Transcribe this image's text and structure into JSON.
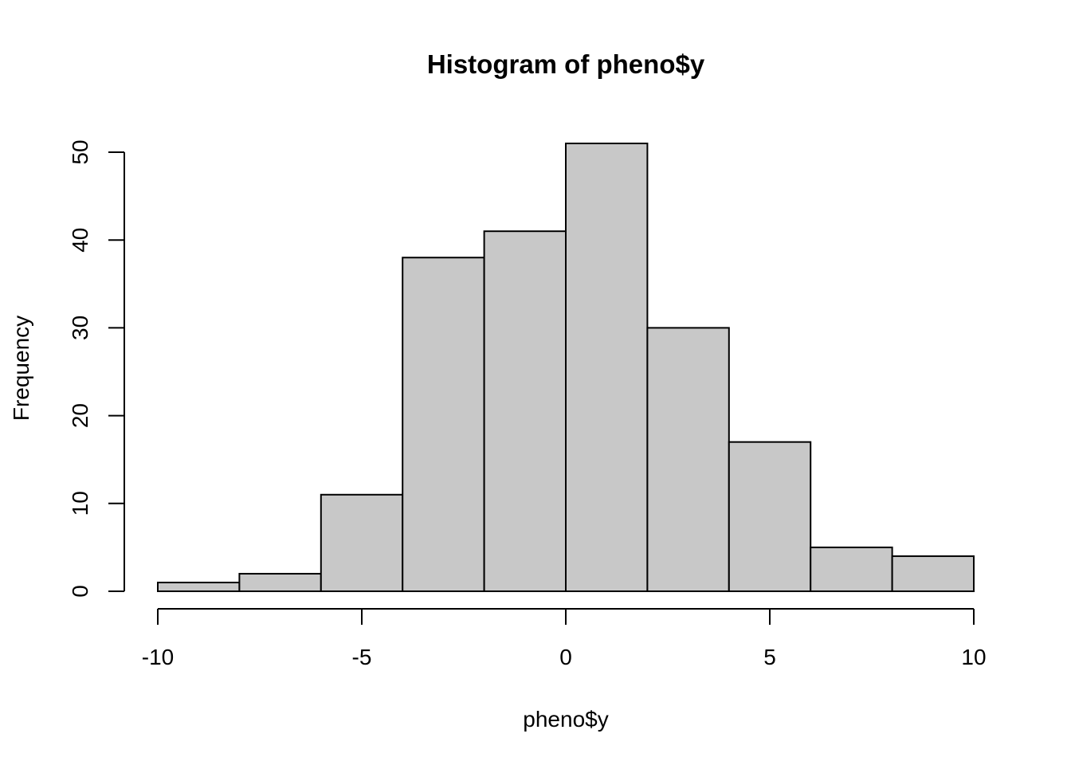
{
  "chart_data": {
    "type": "bar",
    "title": "Histogram of pheno$y",
    "xlabel": "pheno$y",
    "ylabel": "Frequency",
    "bins": [
      {
        "start": -10,
        "end": -8,
        "count": 1
      },
      {
        "start": -8,
        "end": -6,
        "count": 2
      },
      {
        "start": -6,
        "end": -4,
        "count": 11
      },
      {
        "start": -4,
        "end": -2,
        "count": 38
      },
      {
        "start": -2,
        "end": 0,
        "count": 41
      },
      {
        "start": 0,
        "end": 2,
        "count": 51
      },
      {
        "start": 2,
        "end": 4,
        "count": 30
      },
      {
        "start": 4,
        "end": 6,
        "count": 17
      },
      {
        "start": 6,
        "end": 8,
        "count": 5
      },
      {
        "start": 8,
        "end": 10,
        "count": 4
      }
    ],
    "xlim": [
      -10,
      10
    ],
    "ylim": [
      0,
      50
    ],
    "x_ticks": [
      -10,
      -5,
      0,
      5,
      10
    ],
    "x_tick_labels": [
      "-10",
      "-5",
      "0",
      "5",
      "10"
    ],
    "y_ticks": [
      0,
      10,
      20,
      30,
      40,
      50
    ],
    "y_tick_labels": [
      "0",
      "10",
      "20",
      "30",
      "40",
      "50"
    ],
    "bar_color": "#c8c8c8",
    "grid": false,
    "legend": "none"
  }
}
